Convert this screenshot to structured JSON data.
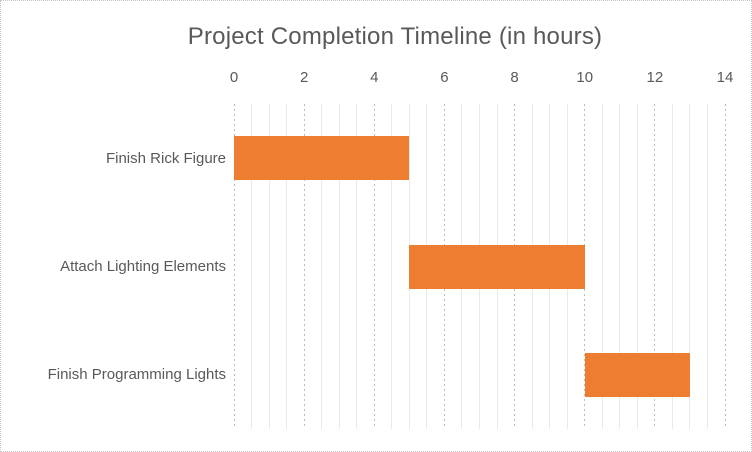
{
  "chart_data": {
    "type": "bar",
    "orientation": "horizontal",
    "title": "Project Completion Timeline (in hours)",
    "xlabel": "",
    "ylabel": "",
    "legend": "none",
    "categories": [
      "Finish Rick Figure",
      "Attach Lighting Elements",
      "Finish Programming Lights"
    ],
    "bars": [
      {
        "label": "Finish Rick Figure",
        "start": 0,
        "end": 5,
        "duration": 5
      },
      {
        "label": "Attach Lighting Elements",
        "start": 5,
        "end": 10,
        "duration": 5
      },
      {
        "label": "Finish Programming Lights",
        "start": 10,
        "end": 13,
        "duration": 3
      }
    ],
    "x_axis": {
      "position": "top",
      "min": 0,
      "max": 14,
      "major_step": 2,
      "minor_step": 0.5,
      "tick_labels": [
        "0",
        "2",
        "4",
        "6",
        "8",
        "10",
        "12",
        "14"
      ]
    },
    "grid": {
      "major": true,
      "minor": true
    },
    "colors": {
      "bar": "#ED7D31",
      "text": "#595959",
      "major_gridline": "#bdbdbd",
      "minor_gridline": "#eaeaea",
      "border": "#c5c5c5",
      "background": "#ffffff"
    }
  }
}
